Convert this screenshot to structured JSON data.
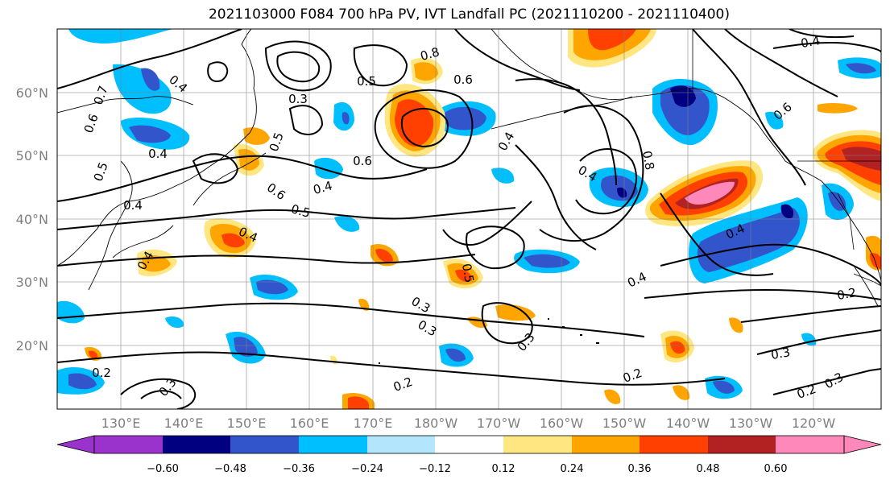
{
  "title": "2021103000 F084 700 hPa PV, IVT Landfall PC (2021110200 - 2021110400)",
  "lat_labels": [
    "60°N",
    "50°N",
    "40°N",
    "30°N",
    "20°N"
  ],
  "lon_labels": [
    "130°E",
    "140°E",
    "150°E",
    "160°E",
    "170°E",
    "180°W",
    "170°W",
    "160°W",
    "150°W",
    "140°W",
    "130°W",
    "120°W"
  ],
  "colorbar": {
    "colors": [
      "#9933cc",
      "#000080",
      "#3355cc",
      "#00bfff",
      "#b3e5fc",
      "#ffffff",
      "#ffe680",
      "#ffa500",
      "#ff4000",
      "#b22222",
      "#ff88bb"
    ],
    "tick_labels": [
      "−0.60",
      "−0.48",
      "−0.36",
      "−0.24",
      "−0.12",
      "0.12",
      "0.24",
      "0.36",
      "0.48",
      "0.60"
    ]
  },
  "contour_labels": [
    "0.4",
    "0.5",
    "0.6",
    "0.7",
    "0.4",
    "0.5",
    "0.4",
    "0.3",
    "0.6",
    "0.4",
    "0.6",
    "0.5",
    "0.4",
    "0.4",
    "0.2",
    "0.3",
    "0.3",
    "0.5",
    "0.3",
    "0.2",
    "0.2",
    "0.3",
    "0.4",
    "0.4",
    "0.4",
    "0.6",
    "0.5",
    "0.2",
    "0.2",
    "0.3",
    "0.4",
    "0.3",
    "0.8",
    "0.8",
    "0.4",
    "0.6"
  ]
}
